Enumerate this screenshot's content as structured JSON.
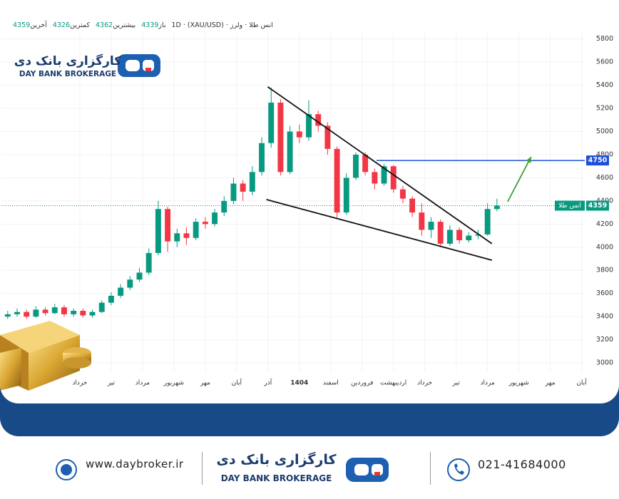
{
  "header": {
    "symbol": "انس طلا · ولرز · 1D · (XAU/USD)",
    "quote": [
      {
        "label": "باز",
        "value": 4339
      },
      {
        "label": "بیشترین",
        "value": 4362
      },
      {
        "label": "کمترین",
        "value": 4326
      },
      {
        "label": "آخرین",
        "value": 4359
      }
    ]
  },
  "logo": {
    "title": "کارگزاری بانک دی",
    "subtitle": "DAY BANK BROKERAGE"
  },
  "chart_data": {
    "type": "candlestick",
    "x": [
      -2.3,
      -2.0,
      -1.7,
      -1.4,
      -1.1,
      -0.8,
      -0.5,
      -0.2,
      0.1,
      0.4,
      0.7,
      1.0,
      1.3,
      1.6,
      1.9,
      2.2,
      2.5,
      2.8,
      3.1,
      3.4,
      3.7,
      4.0,
      4.3,
      4.6,
      4.9,
      5.2,
      5.5,
      5.8,
      6.1,
      6.4,
      6.7,
      7.0,
      7.3,
      7.6,
      7.9,
      8.2,
      8.5,
      8.8,
      9.1,
      9.4,
      9.7,
      10.0,
      10.3,
      10.6,
      10.9,
      11.2,
      11.5,
      11.8,
      12.1,
      12.4,
      12.7,
      13.0,
      13.3
    ],
    "open": [
      3400,
      3420,
      3440,
      3400,
      3460,
      3430,
      3480,
      3420,
      3450,
      3410,
      3440,
      3520,
      3580,
      3650,
      3720,
      3780,
      3950,
      4330,
      4050,
      4120,
      4080,
      4220,
      4200,
      4300,
      4400,
      4550,
      4480,
      4650,
      4900,
      5250,
      4650,
      5000,
      4950,
      5150,
      5050,
      4850,
      4300,
      4600,
      4800,
      4650,
      4550,
      4700,
      4500,
      4420,
      4300,
      4150,
      4220,
      4030,
      4150,
      4060,
      4100,
      4110,
      4330
    ],
    "high": [
      3450,
      3470,
      3460,
      3490,
      3480,
      3510,
      3500,
      3470,
      3470,
      3460,
      3540,
      3610,
      3680,
      3750,
      3820,
      3990,
      4400,
      4350,
      4160,
      4170,
      4250,
      4260,
      4330,
      4440,
      4600,
      4580,
      4700,
      4950,
      5380,
      5280,
      5050,
      5060,
      5270,
      5180,
      5080,
      4870,
      4640,
      4820,
      4820,
      4680,
      4720,
      4710,
      4530,
      4440,
      4380,
      4260,
      4240,
      4190,
      4170,
      4130,
      4150,
      4380,
      4420
    ],
    "low": [
      3380,
      3400,
      3380,
      3390,
      3410,
      3420,
      3400,
      3400,
      3390,
      3390,
      3430,
      3500,
      3560,
      3630,
      3700,
      3760,
      3930,
      3960,
      4000,
      4020,
      4060,
      4160,
      4180,
      4270,
      4370,
      4400,
      4450,
      4620,
      4860,
      4620,
      4630,
      4900,
      4920,
      5000,
      4800,
      4250,
      4280,
      4580,
      4620,
      4500,
      4530,
      4470,
      4380,
      4260,
      4100,
      4080,
      4000,
      4010,
      4030,
      4040,
      4070,
      4100,
      4310
    ],
    "close": [
      3420,
      3440,
      3400,
      3460,
      3430,
      3480,
      3420,
      3450,
      3410,
      3440,
      3520,
      3580,
      3650,
      3720,
      3780,
      3950,
      4330,
      4050,
      4120,
      4080,
      4220,
      4200,
      4300,
      4400,
      4550,
      4480,
      4650,
      4900,
      5250,
      4650,
      5000,
      4950,
      5150,
      5050,
      4850,
      4300,
      4600,
      4800,
      4650,
      4550,
      4700,
      4500,
      4420,
      4300,
      4150,
      4220,
      4030,
      4150,
      4060,
      4100,
      4110,
      4330,
      4359
    ],
    "up_color": "#089981",
    "down_color": "#f23645",
    "xlim": [
      -2.5,
      16.1
    ],
    "ylim": [
      2920,
      5860
    ],
    "yticks": [
      3000,
      3200,
      3400,
      3600,
      3800,
      4000,
      4200,
      4400,
      4600,
      4800,
      5000,
      5200,
      5400,
      5600,
      5800
    ],
    "xticks": [
      {
        "value": 0,
        "label": "خرداد"
      },
      {
        "value": 1,
        "label": "تیر"
      },
      {
        "value": 2,
        "label": "مرداد"
      },
      {
        "value": 3,
        "label": "شهریور"
      },
      {
        "value": 4,
        "label": "مهر"
      },
      {
        "value": 5,
        "label": "آبان"
      },
      {
        "value": 6,
        "label": "آذر"
      },
      {
        "value": 7,
        "label": "1404",
        "bold": true
      },
      {
        "value": 8,
        "label": "اسفند"
      },
      {
        "value": 9,
        "label": "فروردین"
      },
      {
        "value": 10,
        "label": "اردیبهشت"
      },
      {
        "value": 11,
        "label": "خرداد"
      },
      {
        "value": 12,
        "label": "تیر"
      },
      {
        "value": 13,
        "label": "مرداد"
      },
      {
        "value": 14,
        "label": "شهریور"
      },
      {
        "value": 15,
        "label": "مهر"
      },
      {
        "value": 16,
        "label": "آبان"
      }
    ],
    "grid": true,
    "levels": [
      {
        "value": 4750,
        "color": "#1e4fd8",
        "style": "solid"
      },
      {
        "value": 4359,
        "name": "انس طلا",
        "color": "#089981",
        "style": "dotted"
      }
    ],
    "trend_lines": [
      {
        "x": [
          5.99,
          13.14
        ],
        "y": [
          5387,
          4030
        ],
        "color": "#111111"
      },
      {
        "x": [
          5.95,
          13.14
        ],
        "y": [
          4412,
          3888
        ],
        "color": "#111111"
      }
    ],
    "arrow": {
      "x": [
        13.64,
        14.39
      ],
      "y": [
        4393,
        4782
      ],
      "color": "#3f9e3a"
    }
  },
  "footer": {
    "website": "www.daybroker.ir",
    "phone": "021-41684000",
    "title": "کارگزاری بانک دی",
    "subtitle": "DAY BANK BROKERAGE"
  }
}
